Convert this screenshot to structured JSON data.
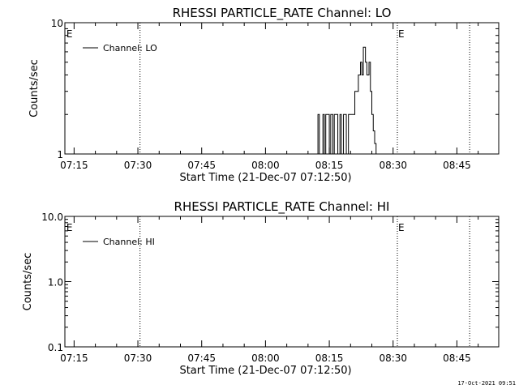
{
  "footer_timestamp": "17-Oct-2021 09:51",
  "chart_data": [
    {
      "type": "line",
      "title": "RHESSI PARTICLE_RATE Channel: LO",
      "xlabel": "Start Time (21-Dec-07 07:12:50)",
      "ylabel": "Counts/sec",
      "yscale": "log",
      "ylim": [
        1,
        10
      ],
      "y_ticks": [
        1,
        10
      ],
      "y_tick_labels": [
        "1",
        "10"
      ],
      "xlim": [
        "07:12:50",
        "08:54:50"
      ],
      "x_ticks": [
        "07:15",
        "07:30",
        "07:45",
        "08:00",
        "08:15",
        "08:30",
        "08:45"
      ],
      "grid": false,
      "legend": {
        "position": "top-left",
        "entries": [
          "Channel: LO"
        ]
      },
      "vertical_markers": [
        "07:30:30",
        "08:31:00",
        "08:48:00"
      ],
      "annotations": [
        {
          "text": "E",
          "x": "07:13:00"
        },
        {
          "text": "E",
          "x": "08:31:00"
        }
      ],
      "series": [
        {
          "name": "Channel: LO",
          "x": [
            "08:11:50",
            "08:12:20",
            "08:12:40",
            "08:13:00",
            "08:13:30",
            "08:13:50",
            "08:14:10",
            "08:14:40",
            "08:15:00",
            "08:15:20",
            "08:15:50",
            "08:16:10",
            "08:16:40",
            "08:17:00",
            "08:17:30",
            "08:17:50",
            "08:18:20",
            "08:18:40",
            "08:19:00",
            "08:19:30",
            "08:19:50",
            "08:20:20",
            "08:20:40",
            "08:21:00",
            "08:21:30",
            "08:21:50",
            "08:22:20",
            "08:22:40",
            "08:23:00",
            "08:23:30",
            "08:23:50",
            "08:24:20",
            "08:24:40",
            "08:25:00",
            "08:25:20",
            "08:25:40",
            "08:26:00"
          ],
          "values": [
            1,
            2,
            1,
            1,
            2,
            1,
            2,
            2,
            1,
            2,
            1,
            2,
            2,
            1,
            2,
            1,
            2,
            2,
            1,
            2,
            2,
            2,
            2,
            3,
            3,
            4,
            5,
            4,
            6.5,
            5,
            4,
            5,
            3,
            2,
            1.5,
            1.2,
            1
          ]
        }
      ]
    },
    {
      "type": "line",
      "title": "RHESSI PARTICLE_RATE Channel: HI",
      "xlabel": "Start Time (21-Dec-07 07:12:50)",
      "ylabel": "Counts/sec",
      "yscale": "log",
      "ylim": [
        0.1,
        10
      ],
      "y_ticks": [
        0.1,
        1,
        10
      ],
      "y_tick_labels": [
        "0.1",
        "1.0",
        "10.0"
      ],
      "xlim": [
        "07:12:50",
        "08:54:50"
      ],
      "x_ticks": [
        "07:15",
        "07:30",
        "07:45",
        "08:00",
        "08:15",
        "08:30",
        "08:45"
      ],
      "grid": false,
      "legend": {
        "position": "top-left",
        "entries": [
          "Channel: HI"
        ]
      },
      "vertical_markers": [
        "07:30:30",
        "08:31:00",
        "08:48:00"
      ],
      "annotations": [
        {
          "text": "E",
          "x": "07:13:00"
        },
        {
          "text": "E",
          "x": "08:31:00"
        }
      ],
      "series": [
        {
          "name": "Channel: HI",
          "x": [],
          "values": []
        }
      ]
    }
  ]
}
